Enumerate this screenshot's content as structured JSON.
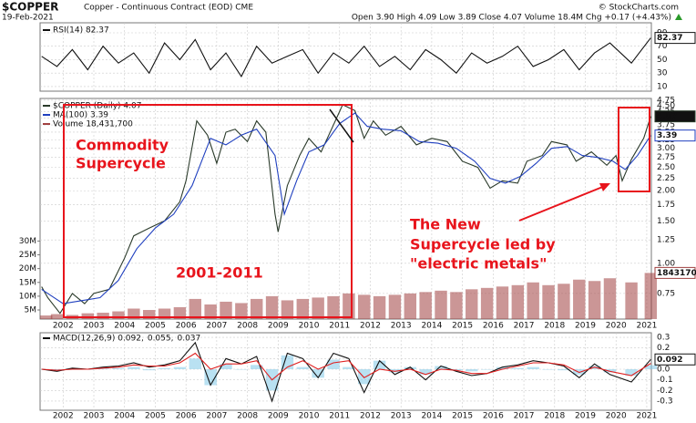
{
  "header": {
    "symbol": "$COPPER",
    "description": "Copper - Continuous Contract (EOD) CME",
    "date": "19-Feb-2021",
    "quote": "Open 3.90 High 4.09 Low 3.89 Close 4.07 Volume 18.4M Chg +0.17 (+4.43%)",
    "credit": "© StockCharts.com"
  },
  "chart_data": [
    {
      "type": "line",
      "xlim": [
        2001.25,
        2021.15
      ],
      "xticks": [
        2002,
        2003,
        2004,
        2005,
        2006,
        2007,
        2008,
        2009,
        2010,
        2011,
        2012,
        2013,
        2014,
        2015,
        2016,
        2017,
        2018,
        2019,
        2020,
        2021
      ],
      "ylim": [
        3.2,
        104.9
      ],
      "yticks": [
        10,
        30,
        50,
        70,
        90
      ],
      "grid": true,
      "x": [
        2001.3,
        2001.8,
        2002.3,
        2002.8,
        2003.3,
        2003.8,
        2004.3,
        2004.8,
        2005.3,
        2005.8,
        2006.3,
        2006.8,
        2007.3,
        2007.8,
        2008.3,
        2008.8,
        2009.3,
        2009.8,
        2010.3,
        2010.8,
        2011.3,
        2011.8,
        2012.3,
        2012.8,
        2013.3,
        2013.8,
        2014.3,
        2014.8,
        2015.3,
        2015.8,
        2016.3,
        2016.8,
        2017.3,
        2017.8,
        2018.3,
        2018.8,
        2019.3,
        2019.8,
        2020.5,
        2021.13
      ],
      "series": [
        {
          "name": "RSI(14) 82.37",
          "color": "#111111",
          "values": [
            55,
            40,
            65,
            35,
            70,
            45,
            60,
            30,
            75,
            50,
            80,
            35,
            60,
            25,
            70,
            45,
            55,
            65,
            30,
            60,
            45,
            70,
            40,
            55,
            35,
            65,
            50,
            30,
            60,
            45,
            55,
            70,
            40,
            50,
            65,
            35,
            60,
            75,
            45,
            82.37
          ]
        }
      ],
      "last_labels": [
        "82.37"
      ]
    },
    {
      "type": "line",
      "log_scale": true,
      "xlim": [
        2001.25,
        2021.15
      ],
      "xticks": [
        2002,
        2003,
        2004,
        2005,
        2006,
        2007,
        2008,
        2009,
        2010,
        2011,
        2012,
        2013,
        2014,
        2015,
        2016,
        2017,
        2018,
        2019,
        2020,
        2021
      ],
      "ylim": [
        0.587,
        4.83
      ],
      "yticks": [
        0.75,
        {
          "value": 1,
          "label": "1.00"
        },
        1.25,
        {
          "value": 1.5,
          "label": "1.50"
        },
        1.75,
        {
          "value": 2,
          "label": "2.00"
        },
        2.25,
        {
          "value": 2.5,
          "label": "2.50"
        },
        2.75,
        {
          "value": 3,
          "label": "3.00"
        },
        3.25,
        {
          "value": 3.5,
          "label": "3.50"
        },
        3.75,
        {
          "value": 4,
          "label": "4.00"
        },
        4.25,
        {
          "value": 4.5,
          "label": "4.50"
        },
        4.75
      ],
      "y2lim": [
        1700000,
        81700000
      ],
      "y2ticks": [
        {
          "value": 5000000,
          "label": "5M"
        },
        {
          "value": 10000000,
          "label": "10M"
        },
        {
          "value": 15000000,
          "label": "15M"
        },
        {
          "value": 20000000,
          "label": "20M"
        },
        {
          "value": 25000000,
          "label": "25M"
        },
        {
          "value": 30000000,
          "label": "30M"
        }
      ],
      "grid": true,
      "x": [
        2001.3,
        2001.8,
        2002.3,
        2002.8,
        2003.3,
        2003.8,
        2004.3,
        2004.8,
        2005.3,
        2005.8,
        2006.3,
        2006.8,
        2007.3,
        2007.8,
        2008.3,
        2008.8,
        2009.3,
        2009.8,
        2010.3,
        2010.8,
        2011.3,
        2011.8,
        2012.3,
        2012.8,
        2013.3,
        2013.8,
        2014.3,
        2014.8,
        2015.3,
        2015.8,
        2016.3,
        2016.8,
        2017.3,
        2017.8,
        2018.3,
        2018.8,
        2019.3,
        2019.8,
        2020.5,
        2021.13
      ],
      "series": [
        {
          "name": "$COPPER (Daily) 4.07",
          "type": "line",
          "color": "#2a3a2a",
          "x": [
            2001.3,
            2001.5,
            2001.9,
            2002.3,
            2002.7,
            2003.0,
            2003.5,
            2004.0,
            2004.3,
            2004.8,
            2005.3,
            2005.8,
            2006.0,
            2006.35,
            2006.7,
            2007.0,
            2007.3,
            2007.6,
            2008.0,
            2008.3,
            2008.6,
            2008.9,
            2009.0,
            2009.3,
            2009.7,
            2010.0,
            2010.4,
            2010.9,
            2011.1,
            2011.5,
            2011.8,
            2012.1,
            2012.5,
            2013.0,
            2013.5,
            2014.0,
            2014.5,
            2015.0,
            2015.5,
            2015.9,
            2016.3,
            2016.8,
            2017.1,
            2017.6,
            2017.9,
            2018.4,
            2018.7,
            2019.2,
            2019.7,
            2020.0,
            2020.2,
            2020.5,
            2020.9,
            2021.13
          ],
          "values": [
            0.8,
            0.72,
            0.62,
            0.75,
            0.68,
            0.75,
            0.78,
            1.05,
            1.3,
            1.4,
            1.5,
            1.8,
            2.2,
            3.9,
            3.4,
            2.6,
            3.5,
            3.6,
            3.2,
            3.9,
            3.5,
            1.6,
            1.35,
            2.1,
            2.8,
            3.3,
            2.9,
            4.0,
            4.55,
            4.3,
            3.3,
            3.9,
            3.4,
            3.7,
            3.1,
            3.3,
            3.2,
            2.65,
            2.5,
            2.05,
            2.2,
            2.15,
            2.65,
            2.8,
            3.2,
            3.1,
            2.65,
            2.9,
            2.55,
            2.8,
            2.2,
            2.7,
            3.3,
            4.07
          ]
        },
        {
          "name": "MA(100) 3.39",
          "type": "line",
          "color": "#1f3fbf",
          "x": [
            2001.3,
            2002.0,
            2002.6,
            2003.2,
            2003.8,
            2004.4,
            2005.0,
            2005.6,
            2006.2,
            2006.8,
            2007.3,
            2007.8,
            2008.3,
            2008.9,
            2009.2,
            2009.6,
            2010.0,
            2010.5,
            2011.0,
            2011.5,
            2011.9,
            2012.4,
            2013.0,
            2013.6,
            2014.2,
            2014.8,
            2015.4,
            2015.9,
            2016.4,
            2016.9,
            2017.4,
            2017.9,
            2018.4,
            2018.9,
            2019.4,
            2019.9,
            2020.3,
            2020.7,
            2021.13
          ],
          "values": [
            0.78,
            0.68,
            0.7,
            0.72,
            0.85,
            1.15,
            1.4,
            1.6,
            2.1,
            3.3,
            3.1,
            3.4,
            3.6,
            2.8,
            1.6,
            2.2,
            2.9,
            3.1,
            3.8,
            4.2,
            3.7,
            3.6,
            3.55,
            3.2,
            3.15,
            3.0,
            2.65,
            2.25,
            2.15,
            2.3,
            2.6,
            3.0,
            3.05,
            2.8,
            2.75,
            2.65,
            2.45,
            2.8,
            3.39
          ]
        },
        {
          "name": "Volume 18,431,700",
          "type": "bar",
          "axis": "y2",
          "color": "#a04040",
          "values": [
            3000000,
            3500000,
            3200000,
            3800000,
            4000000,
            4500000,
            5500000,
            5000000,
            5500000,
            6000000,
            9000000,
            7000000,
            8000000,
            7500000,
            9000000,
            10000000,
            8500000,
            9000000,
            9500000,
            10000000,
            11000000,
            10500000,
            10000000,
            10500000,
            11000000,
            11500000,
            12000000,
            11500000,
            12500000,
            13000000,
            13500000,
            14000000,
            15000000,
            14000000,
            14500000,
            16000000,
            15500000,
            16500000,
            15000000,
            18431700
          ]
        }
      ],
      "last_labels": [
        "4.07",
        "3.39",
        "18431700"
      ],
      "annotations": [
        "Commodity",
        "Supercycle",
        "2001-2011",
        "The New",
        "Supercycle led by",
        "\"electric metals\""
      ]
    },
    {
      "type": "line",
      "xlim": [
        2001.25,
        2021.15
      ],
      "xticks": [
        2002,
        2003,
        2004,
        2005,
        2006,
        2007,
        2008,
        2009,
        2010,
        2011,
        2012,
        2013,
        2014,
        2015,
        2016,
        2017,
        2018,
        2019,
        2020,
        2021
      ],
      "ylim": [
        -0.386,
        0.343
      ],
      "yticks": [
        0.3,
        0.2,
        0.1,
        {
          "value": 0,
          "label": "0.0"
        },
        -0.1,
        -0.2,
        -0.3
      ],
      "grid": true,
      "x": [
        2001.3,
        2001.8,
        2002.3,
        2002.8,
        2003.3,
        2003.8,
        2004.3,
        2004.8,
        2005.3,
        2005.8,
        2006.3,
        2006.8,
        2007.3,
        2007.8,
        2008.3,
        2008.8,
        2009.3,
        2009.8,
        2010.3,
        2010.8,
        2011.3,
        2011.8,
        2012.3,
        2012.8,
        2013.3,
        2013.8,
        2014.3,
        2014.8,
        2015.3,
        2015.8,
        2016.3,
        2016.8,
        2017.3,
        2017.8,
        2018.3,
        2018.8,
        2019.3,
        2019.8,
        2020.5,
        2021.13
      ],
      "series": [
        {
          "name": "0.037",
          "type": "bar",
          "color": "#7fc8e8",
          "values": [
            0,
            -0.01,
            0.01,
            0,
            0.01,
            0.01,
            0.02,
            -0.01,
            0.01,
            0.02,
            0.1,
            -0.15,
            0.05,
            0,
            0.04,
            -0.2,
            0.13,
            0.02,
            -0.08,
            0.09,
            0.02,
            -0.14,
            0.08,
            -0.03,
            0.02,
            -0.05,
            0.03,
            -0.01,
            -0.02,
            0,
            0.02,
            0.01,
            0.02,
            0,
            -0.01,
            -0.05,
            0.03,
            -0.03,
            -0.06,
            0.037
          ]
        },
        {
          "name": "MACD(12,26,9) 0.092,",
          "type": "line",
          "color": "#111111",
          "values": [
            0.0,
            -0.02,
            0.01,
            0.0,
            0.02,
            0.03,
            0.06,
            0.02,
            0.04,
            0.08,
            0.25,
            -0.15,
            0.1,
            0.05,
            0.12,
            -0.3,
            0.15,
            0.1,
            -0.08,
            0.15,
            0.1,
            -0.22,
            0.08,
            -0.05,
            0.02,
            -0.1,
            0.03,
            -0.02,
            -0.06,
            -0.04,
            0.02,
            0.04,
            0.08,
            0.06,
            0.03,
            -0.08,
            0.05,
            -0.05,
            -0.12,
            0.092
          ]
        },
        {
          "name": "0.055,",
          "type": "line",
          "color": "#e02020",
          "values": [
            0,
            -0.01,
            0,
            0,
            0.01,
            0.02,
            0.04,
            0.03,
            0.03,
            0.06,
            0.15,
            0.0,
            0.05,
            0.05,
            0.08,
            -0.1,
            0.02,
            0.08,
            0.0,
            0.06,
            0.08,
            -0.08,
            0.0,
            -0.02,
            0.0,
            -0.05,
            0.0,
            -0.01,
            -0.04,
            -0.04,
            0.0,
            0.03,
            0.06,
            0.06,
            0.04,
            -0.03,
            0.02,
            -0.02,
            -0.06,
            0.055
          ]
        }
      ],
      "last_labels": [
        null,
        "0.092",
        null
      ]
    }
  ]
}
